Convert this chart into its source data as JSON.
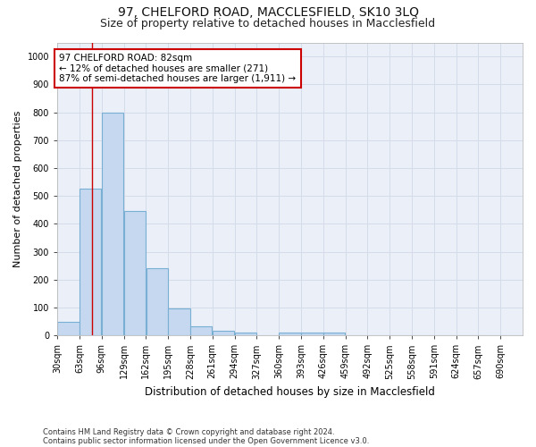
{
  "title": "97, CHELFORD ROAD, MACCLESFIELD, SK10 3LQ",
  "subtitle": "Size of property relative to detached houses in Macclesfield",
  "xlabel": "Distribution of detached houses by size in Macclesfield",
  "ylabel": "Number of detached properties",
  "footnote1": "Contains HM Land Registry data © Crown copyright and database right 2024.",
  "footnote2": "Contains public sector information licensed under the Open Government Licence v3.0.",
  "bin_labels": [
    "30sqm",
    "63sqm",
    "96sqm",
    "129sqm",
    "162sqm",
    "195sqm",
    "228sqm",
    "261sqm",
    "294sqm",
    "327sqm",
    "360sqm",
    "393sqm",
    "426sqm",
    "459sqm",
    "492sqm",
    "525sqm",
    "558sqm",
    "591sqm",
    "624sqm",
    "657sqm",
    "690sqm"
  ],
  "bin_edges": [
    30,
    63,
    96,
    129,
    162,
    195,
    228,
    261,
    294,
    327,
    360,
    393,
    426,
    459,
    492,
    525,
    558,
    591,
    624,
    657,
    690
  ],
  "bar_heights": [
    50,
    525,
    800,
    445,
    240,
    97,
    33,
    18,
    10,
    0,
    10,
    10,
    10,
    0,
    0,
    0,
    0,
    0,
    0,
    0,
    0
  ],
  "bar_color": "#c5d8f0",
  "bar_edgecolor": "#7aafd4",
  "bar_linewidth": 0.8,
  "property_size": 82,
  "property_line_color": "#cc0000",
  "annotation_text": "97 CHELFORD ROAD: 82sqm\n← 12% of detached houses are smaller (271)\n87% of semi-detached houses are larger (1,911) →",
  "annotation_box_color": "#ffffff",
  "annotation_box_edgecolor": "#cc0000",
  "ylim": [
    0,
    1050
  ],
  "yticks": [
    0,
    100,
    200,
    300,
    400,
    500,
    600,
    700,
    800,
    900,
    1000
  ],
  "grid_color": "#d4dcea",
  "bg_color": "#ffffff",
  "plot_bg_color": "#eaeff8",
  "title_fontsize": 10,
  "subtitle_fontsize": 9,
  "xlabel_fontsize": 8.5,
  "ylabel_fontsize": 8,
  "tick_fontsize": 7,
  "annot_fontsize": 7.5
}
